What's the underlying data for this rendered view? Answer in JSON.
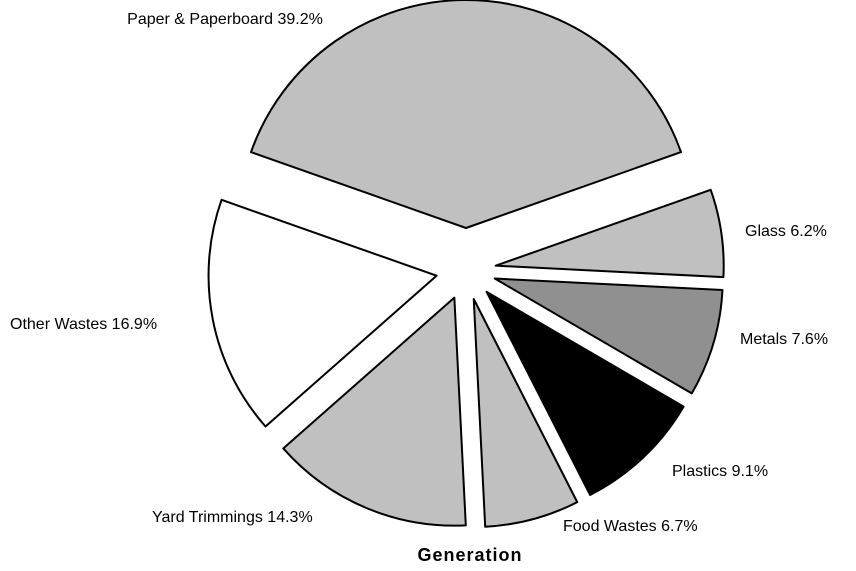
{
  "chart_data": {
    "type": "pie",
    "title": "Generation",
    "categories": [
      "Paper & Paperboard",
      "Glass",
      "Metals",
      "Plastics",
      "Food Wastes",
      "Yard Trimmings",
      "Other Wastes"
    ],
    "values": [
      39.2,
      6.2,
      7.6,
      9.1,
      6.7,
      14.3,
      16.9
    ],
    "value_labels": [
      "39.2%",
      "6.2%",
      "7.6%",
      "9.1%",
      "6.7%",
      "14.3%",
      "16.9%"
    ],
    "colors": [
      "#c0c0c0",
      "#c0c0c0",
      "#909090",
      "#000000",
      "#c0c0c0",
      "#c0c0c0",
      "#ffffff"
    ]
  }
}
